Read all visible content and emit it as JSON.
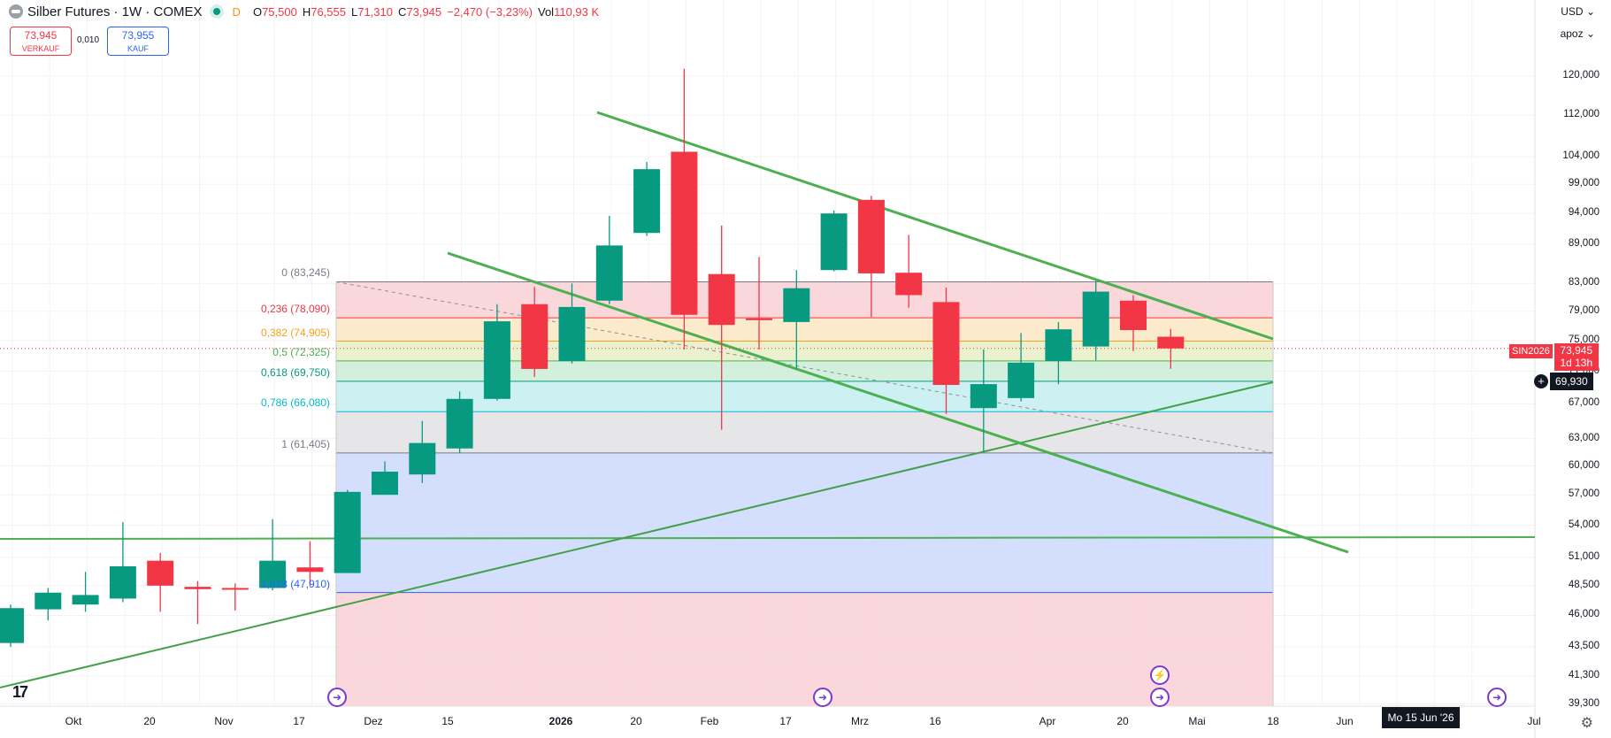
{
  "header": {
    "title": "Silber Futures · 1W · COMEX",
    "session_badge": "D",
    "open_label": "O",
    "open_value": "75,500",
    "high_label": "H",
    "high_value": "76,555",
    "low_label": "L",
    "low_value": "71,310",
    "close_label": "C",
    "close_value": "73,945",
    "change": "−2,470 (−3,23%)",
    "volume_label": "Vol",
    "volume_value": "110,93 K"
  },
  "trade": {
    "sell_price": "73,945",
    "sell_label": "VERKAUF",
    "spread": "0,010",
    "buy_price": "73,955",
    "buy_label": "KAUF"
  },
  "toolbar": {
    "currency": "USD",
    "scale_mode": "apoz"
  },
  "price_tag": {
    "symbol": "SIN2026",
    "price": "73,945",
    "countdown": "1d 13h"
  },
  "crosshair": {
    "price": "69,930",
    "date": "Mo 15 Jun '26"
  },
  "icons": {
    "logo": "tradingview-logo",
    "gear": "settings-gear-icon",
    "event": "event-arrow-icon",
    "flash": "flash-icon"
  },
  "colors": {
    "up": "#089981",
    "down": "#f23645",
    "trendline": "#4caf50"
  },
  "chart_data": {
    "type": "candlestick",
    "title": "Silber Futures · 1W · COMEX",
    "y_scale": "log",
    "y_tick_labels": [
      "120,000",
      "112,000",
      "104,000",
      "99,000",
      "94,000",
      "89,000",
      "83,000",
      "79,000",
      "75,000",
      "71,000",
      "67,000",
      "63,000",
      "60,000",
      "57,000",
      "54,000",
      "51,000",
      "48,500",
      "46,000",
      "43,500",
      "41,300",
      "39,300"
    ],
    "x_tick_labels": [
      "Okt",
      "20",
      "Nov",
      "17",
      "Dez",
      "15",
      "2026",
      "20",
      "Feb",
      "17",
      "Mrz",
      "16",
      "Apr",
      "20",
      "Mai",
      "18",
      "Jun",
      "Jul"
    ],
    "bold_x_ticks": [
      "Okt",
      "Nov",
      "Dez",
      "2026",
      "Feb",
      "Mrz",
      "Apr",
      "Mai",
      "Jun",
      "Jul"
    ],
    "candles": [
      {
        "o": 43.8,
        "h": 46.9,
        "l": 43.5,
        "c": 46.6
      },
      {
        "o": 46.5,
        "h": 48.3,
        "l": 45.6,
        "c": 47.9
      },
      {
        "o": 46.9,
        "h": 49.7,
        "l": 46.3,
        "c": 47.7
      },
      {
        "o": 47.4,
        "h": 54.3,
        "l": 47.1,
        "c": 50.2
      },
      {
        "o": 50.7,
        "h": 51.4,
        "l": 46.3,
        "c": 48.5
      },
      {
        "o": 48.4,
        "h": 48.9,
        "l": 45.3,
        "c": 48.2
      },
      {
        "o": 48.3,
        "h": 48.7,
        "l": 46.4,
        "c": 48.2
      },
      {
        "o": 48.3,
        "h": 54.6,
        "l": 48.1,
        "c": 50.7
      },
      {
        "o": 50.1,
        "h": 52.5,
        "l": 48.5,
        "c": 49.7
      },
      {
        "o": 49.6,
        "h": 57.5,
        "l": 49.6,
        "c": 57.3
      },
      {
        "o": 57.0,
        "h": 60.5,
        "l": 57.0,
        "c": 59.4
      },
      {
        "o": 59.1,
        "h": 65.0,
        "l": 58.2,
        "c": 62.5
      },
      {
        "o": 61.9,
        "h": 68.5,
        "l": 61.4,
        "c": 67.6
      },
      {
        "o": 67.6,
        "h": 80.0,
        "l": 67.4,
        "c": 77.6
      },
      {
        "o": 80.0,
        "h": 82.5,
        "l": 70.3,
        "c": 71.3
      },
      {
        "o": 72.3,
        "h": 83.0,
        "l": 72.0,
        "c": 79.6
      },
      {
        "o": 80.5,
        "h": 93.6,
        "l": 80.0,
        "c": 88.8
      },
      {
        "o": 90.8,
        "h": 103.0,
        "l": 90.3,
        "c": 101.7
      },
      {
        "o": 104.9,
        "h": 121.6,
        "l": 73.8,
        "c": 78.5
      },
      {
        "o": 84.4,
        "h": 92.0,
        "l": 64.0,
        "c": 77.1
      },
      {
        "o": 78.0,
        "h": 87.0,
        "l": 73.8,
        "c": 77.9
      },
      {
        "o": 77.5,
        "h": 85.0,
        "l": 71.3,
        "c": 82.3
      },
      {
        "o": 85.0,
        "h": 94.5,
        "l": 84.8,
        "c": 94.0
      },
      {
        "o": 96.3,
        "h": 97.0,
        "l": 78.2,
        "c": 84.5
      },
      {
        "o": 84.6,
        "h": 90.5,
        "l": 79.5,
        "c": 81.3
      },
      {
        "o": 80.3,
        "h": 82.4,
        "l": 65.8,
        "c": 69.3
      },
      {
        "o": 66.5,
        "h": 73.8,
        "l": 61.6,
        "c": 69.4
      },
      {
        "o": 67.7,
        "h": 76.0,
        "l": 67.3,
        "c": 72.1
      },
      {
        "o": 72.3,
        "h": 77.5,
        "l": 69.4,
        "c": 76.5
      },
      {
        "o": 74.2,
        "h": 83.4,
        "l": 72.4,
        "c": 81.8
      },
      {
        "o": 80.5,
        "h": 81.3,
        "l": 73.6,
        "c": 76.4
      },
      {
        "o": 75.5,
        "h": 76.555,
        "l": 71.31,
        "c": 73.945
      }
    ],
    "fibonacci": {
      "levels": [
        {
          "ratio": "0",
          "price": "83,245",
          "value": 83.245,
          "color": "#787b86",
          "fill": "#fad3d6"
        },
        {
          "ratio": "0,236",
          "price": "78,090",
          "value": 78.09,
          "color": "#f23645",
          "fill": "#fce8c8"
        },
        {
          "ratio": "0,382",
          "price": "74,905",
          "value": 74.905,
          "color": "#f7a21b",
          "fill": "#e9f0c9"
        },
        {
          "ratio": "0,5",
          "price": "72,325",
          "value": 72.325,
          "color": "#4caf50",
          "fill": "#cdeed8"
        },
        {
          "ratio": "0,618",
          "price": "69,750",
          "value": 69.75,
          "color": "#089981",
          "fill": "#c8eef1"
        },
        {
          "ratio": "0,786",
          "price": "66,080",
          "value": 66.08,
          "color": "#00bcd4",
          "fill": "#e3e3e5"
        },
        {
          "ratio": "1",
          "price": "61,405",
          "value": 61.405,
          "color": "#787b86",
          "fill": "#cfdcfd"
        },
        {
          "ratio": "1,618",
          "price": "47,910",
          "value": 47.91,
          "color": "#2962ff",
          "fill": "#fad3d6"
        }
      ]
    },
    "current_price": 73.945
  }
}
